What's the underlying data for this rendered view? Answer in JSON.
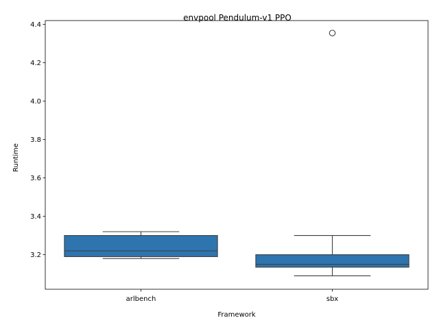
{
  "chart_data": {
    "type": "box",
    "title": "envpool Pendulum-v1 PPO",
    "xlabel": "Framework",
    "ylabel": "Runtime",
    "categories": [
      "arlbench",
      "sbx"
    ],
    "ylim": [
      3.02,
      4.42
    ],
    "yticks": [
      "3.2",
      "3.4",
      "3.6",
      "3.8",
      "4.0",
      "4.2",
      "4.4"
    ],
    "grid": false,
    "box_color": "#2e75b0",
    "boxes": [
      {
        "category": "arlbench",
        "whisker_low": 3.18,
        "q1": 3.19,
        "median": 3.22,
        "q3": 3.3,
        "whisker_high": 3.32,
        "outliers": []
      },
      {
        "category": "sbx",
        "whisker_low": 3.09,
        "q1": 3.135,
        "median": 3.15,
        "q3": 3.2,
        "whisker_high": 3.3,
        "outliers": [
          4.355
        ]
      }
    ]
  }
}
